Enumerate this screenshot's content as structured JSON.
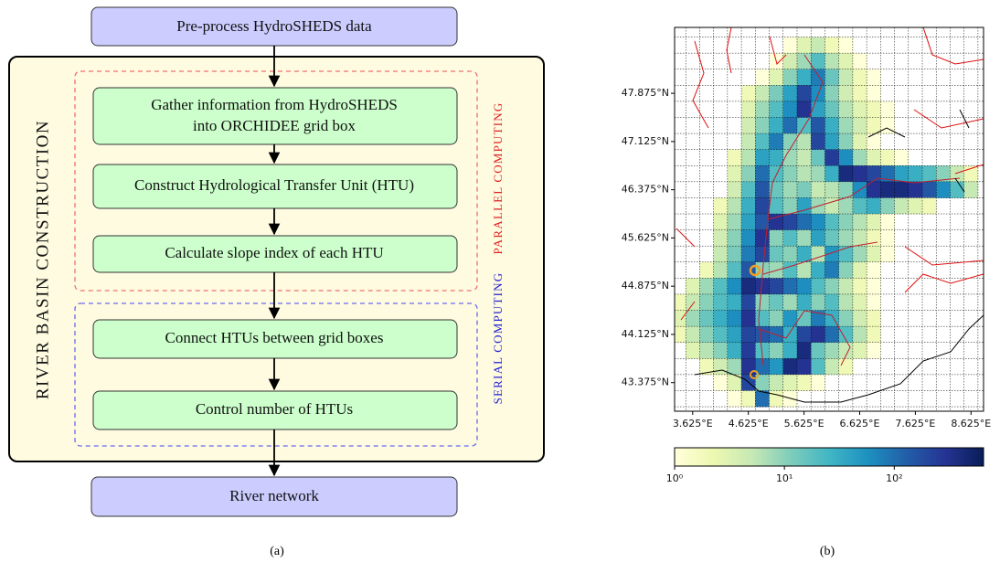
{
  "flowchart": {
    "start": "Pre-process HydroSHEDS data",
    "group_label": "RIVER BASIN CONSTRUCTION",
    "parallel_label": "PARALLEL COMPUTING",
    "serial_label": "SERIAL COMPUTING",
    "steps": [
      [
        "Gather information from HydroSHEDS",
        "into ORCHIDEE grid box"
      ],
      "Construct Hydrological Transfer Unit (HTU)",
      "Calculate slope index of each HTU",
      "Connect HTUs between grid boxes",
      "Control number of HTUs"
    ],
    "end": "River network",
    "caption": "(a)"
  },
  "chart_data": {
    "type": "heatmap",
    "caption": "(b)",
    "xlim": [
      3.3,
      8.85
    ],
    "ylim": [
      42.93,
      48.9
    ],
    "xticks": [
      {
        "value": 3.625,
        "label": "3.625°E"
      },
      {
        "value": 4.625,
        "label": "4.625°E"
      },
      {
        "value": 5.625,
        "label": "5.625°E"
      },
      {
        "value": 6.625,
        "label": "6.625°E"
      },
      {
        "value": 7.625,
        "label": "7.625°E"
      },
      {
        "value": 8.625,
        "label": "8.625°E"
      }
    ],
    "yticks": [
      {
        "value": 43.375,
        "label": "43.375°N"
      },
      {
        "value": 44.125,
        "label": "44.125°N"
      },
      {
        "value": 44.875,
        "label": "44.875°N"
      },
      {
        "value": 45.625,
        "label": "45.625°N"
      },
      {
        "value": 46.375,
        "label": "46.375°N"
      },
      {
        "value": 47.125,
        "label": "47.125°N"
      },
      {
        "value": 47.875,
        "label": "47.875°N"
      }
    ],
    "colormap": [
      "#ffffd9",
      "#edf8b1",
      "#c7e9b4",
      "#7fcdbb",
      "#41b6c4",
      "#1d91c0",
      "#225ea8",
      "#253494",
      "#081d58"
    ],
    "log_scale": true,
    "clim": [
      1,
      650
    ],
    "cticks": [
      {
        "value": 1,
        "label": "10⁰"
      },
      {
        "value": 10,
        "label": "10¹"
      },
      {
        "value": 100,
        "label": "10²"
      }
    ],
    "values": [
      [
        null,
        null,
        null,
        null,
        null,
        null,
        null,
        null,
        1,
        3,
        5,
        2,
        1,
        null,
        null,
        null,
        null,
        null,
        null,
        null,
        null,
        null
      ],
      [
        null,
        null,
        null,
        null,
        null,
        null,
        null,
        1,
        4,
        8,
        20,
        6,
        3,
        1,
        null,
        null,
        null,
        null,
        null,
        null,
        null,
        null
      ],
      [
        null,
        null,
        null,
        null,
        null,
        null,
        1,
        3,
        10,
        30,
        80,
        15,
        5,
        2,
        1,
        null,
        null,
        null,
        null,
        null,
        null,
        null
      ],
      [
        null,
        null,
        null,
        null,
        null,
        2,
        5,
        12,
        40,
        200,
        60,
        10,
        4,
        2,
        1,
        null,
        null,
        null,
        null,
        null,
        null,
        null
      ],
      [
        null,
        null,
        null,
        null,
        null,
        3,
        8,
        20,
        60,
        300,
        40,
        15,
        6,
        3,
        2,
        1,
        null,
        null,
        null,
        null,
        null,
        null
      ],
      [
        null,
        null,
        null,
        null,
        null,
        4,
        10,
        30,
        100,
        20,
        150,
        30,
        8,
        4,
        2,
        1,
        null,
        null,
        null,
        null,
        null,
        null
      ],
      [
        null,
        null,
        null,
        null,
        null,
        5,
        20,
        80,
        10,
        6,
        200,
        40,
        10,
        3,
        1,
        null,
        null,
        null,
        null,
        null,
        null,
        null
      ],
      [
        null,
        null,
        null,
        null,
        2,
        6,
        40,
        30,
        8,
        5,
        15,
        250,
        60,
        8,
        3,
        2,
        1,
        null,
        null,
        null,
        null,
        null
      ],
      [
        null,
        null,
        null,
        null,
        3,
        10,
        100,
        20,
        10,
        6,
        8,
        30,
        400,
        300,
        200,
        100,
        40,
        30,
        20,
        10,
        5,
        2
      ],
      [
        null,
        null,
        null,
        null,
        4,
        20,
        150,
        15,
        8,
        12,
        5,
        6,
        10,
        60,
        300,
        400,
        400,
        300,
        150,
        60,
        20,
        5
      ],
      [
        null,
        null,
        null,
        2,
        6,
        30,
        200,
        20,
        10,
        40,
        8,
        5,
        8,
        20,
        30,
        10,
        5,
        3,
        2,
        null,
        null,
        null
      ],
      [
        null,
        null,
        null,
        3,
        8,
        40,
        150,
        300,
        200,
        100,
        60,
        20,
        10,
        6,
        3,
        1,
        null,
        null,
        null,
        null,
        null,
        null
      ],
      [
        null,
        null,
        null,
        4,
        10,
        60,
        300,
        10,
        20,
        8,
        40,
        15,
        8,
        5,
        2,
        1,
        null,
        null,
        null,
        null,
        null,
        null
      ],
      [
        null,
        null,
        null,
        5,
        12,
        80,
        200,
        15,
        10,
        30,
        6,
        50,
        20,
        8,
        3,
        1,
        null,
        null,
        null,
        null,
        null,
        null
      ],
      [
        null,
        null,
        2,
        6,
        20,
        150,
        10,
        8,
        20,
        6,
        30,
        80,
        10,
        3,
        1,
        null,
        null,
        null,
        null,
        null,
        null,
        null
      ],
      [
        null,
        3,
        8,
        20,
        60,
        400,
        300,
        200,
        100,
        60,
        20,
        10,
        5,
        2,
        1,
        null,
        null,
        null,
        null,
        null,
        null,
        null
      ],
      [
        2,
        5,
        10,
        20,
        30,
        200,
        10,
        15,
        8,
        30,
        10,
        20,
        6,
        3,
        1,
        null,
        null,
        null,
        null,
        null,
        null,
        null
      ],
      [
        3,
        8,
        15,
        30,
        60,
        300,
        20,
        10,
        50,
        15,
        80,
        30,
        10,
        4,
        2,
        null,
        null,
        null,
        null,
        null,
        null,
        null
      ],
      [
        2,
        5,
        10,
        20,
        40,
        200,
        150,
        100,
        30,
        200,
        300,
        100,
        20,
        6,
        2,
        null,
        null,
        null,
        null,
        null,
        null,
        null
      ],
      [
        null,
        3,
        6,
        10,
        30,
        250,
        20,
        10,
        30,
        400,
        15,
        8,
        5,
        3,
        1,
        null,
        null,
        null,
        null,
        null,
        null,
        null
      ],
      [
        null,
        null,
        2,
        4,
        8,
        300,
        100,
        50,
        400,
        300,
        20,
        5,
        2,
        null,
        null,
        null,
        null,
        null,
        null,
        null,
        null,
        null
      ],
      [
        null,
        null,
        null,
        1,
        3,
        200,
        10,
        5,
        3,
        2,
        1,
        null,
        null,
        null,
        null,
        null,
        null,
        null,
        null,
        null,
        null,
        null
      ],
      [
        null,
        null,
        null,
        null,
        1,
        2,
        100,
        2,
        1,
        null,
        null,
        null,
        null,
        null,
        null,
        null,
        null,
        null,
        null,
        null,
        null,
        null
      ]
    ]
  }
}
